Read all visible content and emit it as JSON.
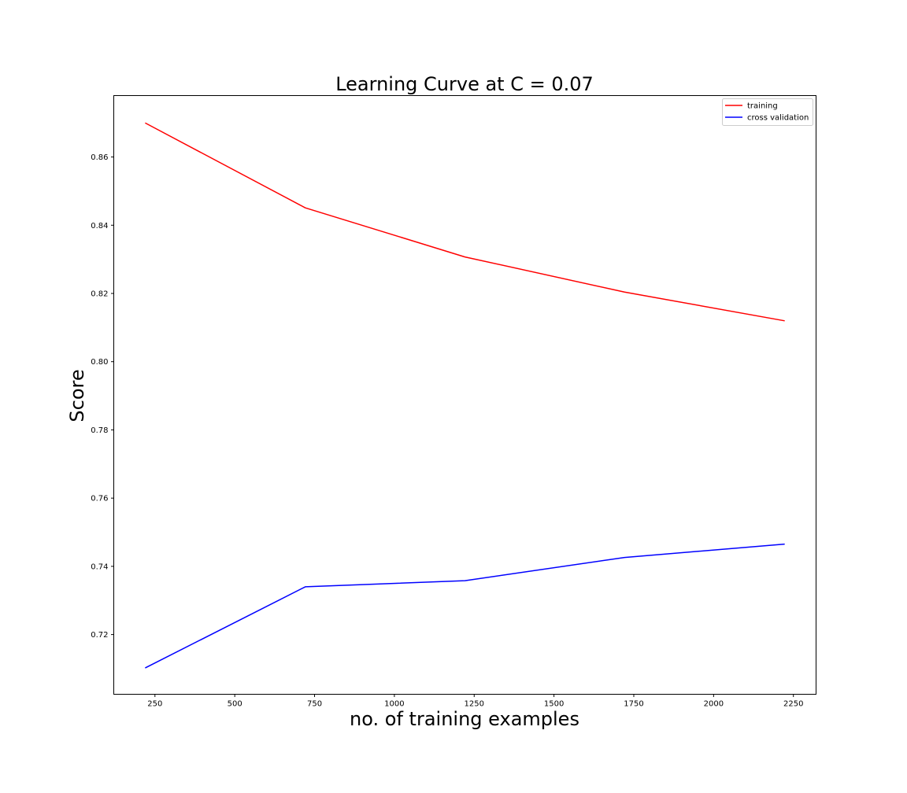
{
  "chart_data": {
    "type": "line",
    "title": "Learning Curve at C = 0.07",
    "xlabel": "no. of training examples",
    "ylabel": "Score",
    "xlim": [
      121,
      2321
    ],
    "ylim": [
      0.7025,
      0.878
    ],
    "x_ticks": [
      250,
      500,
      750,
      1000,
      1250,
      1500,
      1750,
      2000,
      2250
    ],
    "x_tick_labels": [
      "250",
      "500",
      "750",
      "1000",
      "1250",
      "1500",
      "1750",
      "2000",
      "2250"
    ],
    "y_ticks": [
      0.72,
      0.74,
      0.76,
      0.78,
      0.8,
      0.82,
      0.84,
      0.86
    ],
    "y_tick_labels": [
      "0.72",
      "0.74",
      "0.76",
      "0.78",
      "0.80",
      "0.82",
      "0.84",
      "0.86"
    ],
    "grid": false,
    "legend_position": "top-right",
    "x": [
      221,
      721,
      1221,
      1721,
      2221
    ],
    "series": [
      {
        "name": "training",
        "color": "#ff0000",
        "values": [
          0.8699,
          0.8451,
          0.8307,
          0.8204,
          0.812
        ]
      },
      {
        "name": "cross validation",
        "color": "#0000ff",
        "values": [
          0.7103,
          0.734,
          0.7358,
          0.7426,
          0.7465
        ]
      }
    ]
  }
}
